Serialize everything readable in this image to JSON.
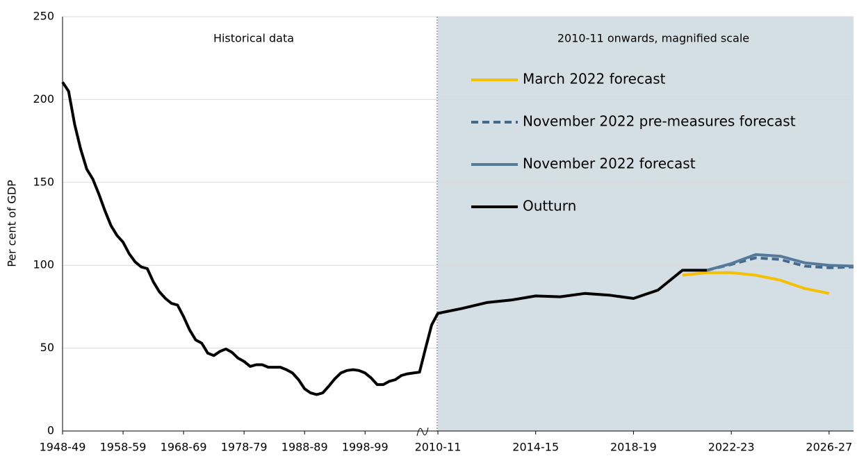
{
  "chart_data": {
    "type": "line",
    "ylabel": "Per cent of GDP",
    "annotations": [
      "Historical data",
      "2010-11 onwards, magnified scale"
    ],
    "shaded_from": "2010-11",
    "categories": [
      "1948-49",
      null,
      null,
      null,
      null,
      null,
      null,
      null,
      null,
      null,
      "1958-59",
      null,
      null,
      null,
      null,
      null,
      null,
      null,
      null,
      null,
      "1968-69",
      null,
      null,
      null,
      null,
      null,
      null,
      null,
      null,
      null,
      "1978-79",
      null,
      null,
      null,
      null,
      null,
      null,
      null,
      null,
      null,
      "1988-89",
      null,
      null,
      null,
      null,
      null,
      null,
      null,
      null,
      null,
      "1998-99",
      null,
      null,
      null,
      null,
      null,
      null,
      null,
      null,
      null,
      null,
      null,
      "2010-11",
      null,
      null,
      null,
      "2014-15",
      null,
      null,
      null,
      "2018-19",
      null,
      null,
      null,
      "2022-23",
      null,
      null,
      null,
      "2026-27",
      null
    ],
    "ylim": [
      0,
      250
    ],
    "yticks": [
      0,
      50,
      100,
      150,
      200,
      250
    ],
    "grid": true,
    "series": [
      {
        "name": "March 2022 forecast",
        "color": "#f5c000",
        "dash": false,
        "values": [
          null,
          null,
          null,
          null,
          null,
          null,
          null,
          null,
          null,
          null,
          null,
          null,
          null,
          null,
          null,
          null,
          null,
          null,
          null,
          null,
          null,
          null,
          null,
          null,
          null,
          null,
          null,
          null,
          null,
          null,
          null,
          null,
          null,
          null,
          null,
          null,
          null,
          null,
          null,
          null,
          null,
          null,
          null,
          null,
          null,
          null,
          null,
          null,
          null,
          null,
          null,
          null,
          null,
          null,
          null,
          null,
          null,
          null,
          null,
          null,
          null,
          null,
          null,
          null,
          null,
          null,
          null,
          null,
          null,
          null,
          null,
          null,
          94,
          95.5,
          95.5,
          94,
          91,
          86,
          83,
          null
        ]
      },
      {
        "name": "November 2022 pre-measures forecast",
        "color": "#44698a",
        "dash": true,
        "values": [
          null,
          null,
          null,
          null,
          null,
          null,
          null,
          null,
          null,
          null,
          null,
          null,
          null,
          null,
          null,
          null,
          null,
          null,
          null,
          null,
          null,
          null,
          null,
          null,
          null,
          null,
          null,
          null,
          null,
          null,
          null,
          null,
          null,
          null,
          null,
          null,
          null,
          null,
          null,
          null,
          null,
          null,
          null,
          null,
          null,
          null,
          null,
          null,
          null,
          null,
          null,
          null,
          null,
          null,
          null,
          null,
          null,
          null,
          null,
          null,
          null,
          null,
          null,
          null,
          null,
          null,
          null,
          null,
          null,
          null,
          null,
          null,
          null,
          97,
          100.5,
          104.5,
          103.5,
          99.5,
          98.5,
          99
        ]
      },
      {
        "name": "November 2022 forecast",
        "color": "#557a99",
        "dash": false,
        "values": [
          null,
          null,
          null,
          null,
          null,
          null,
          null,
          null,
          null,
          null,
          null,
          null,
          null,
          null,
          null,
          null,
          null,
          null,
          null,
          null,
          null,
          null,
          null,
          null,
          null,
          null,
          null,
          null,
          null,
          null,
          null,
          null,
          null,
          null,
          null,
          null,
          null,
          null,
          null,
          null,
          null,
          null,
          null,
          null,
          null,
          null,
          null,
          null,
          null,
          null,
          null,
          null,
          null,
          null,
          null,
          null,
          null,
          null,
          null,
          null,
          null,
          null,
          null,
          null,
          null,
          null,
          null,
          null,
          null,
          null,
          null,
          null,
          null,
          97,
          101,
          106.5,
          105.5,
          101.5,
          100,
          99.5
        ]
      },
      {
        "name": "Outturn",
        "color": "#000000",
        "dash": false,
        "values": [
          210.5,
          205,
          185,
          170,
          158,
          152,
          143,
          133,
          124,
          118,
          114,
          107,
          102,
          99,
          98,
          90,
          84,
          80,
          77,
          76,
          69,
          61,
          55,
          53,
          47,
          45.5,
          48,
          49.5,
          47.5,
          44,
          42,
          39,
          40,
          40,
          38.5,
          38.5,
          38.5,
          37,
          35,
          31,
          25.5,
          23,
          22,
          23,
          27,
          31.5,
          35,
          36.5,
          37,
          36.5,
          35,
          32,
          28,
          28,
          30,
          31,
          33.5,
          34.5,
          35,
          35.5,
          50,
          64,
          71,
          74,
          77.5,
          79,
          81.5,
          81,
          83,
          82,
          80,
          85,
          97,
          97,
          null,
          null,
          null,
          null,
          null,
          null
        ]
      }
    ]
  }
}
